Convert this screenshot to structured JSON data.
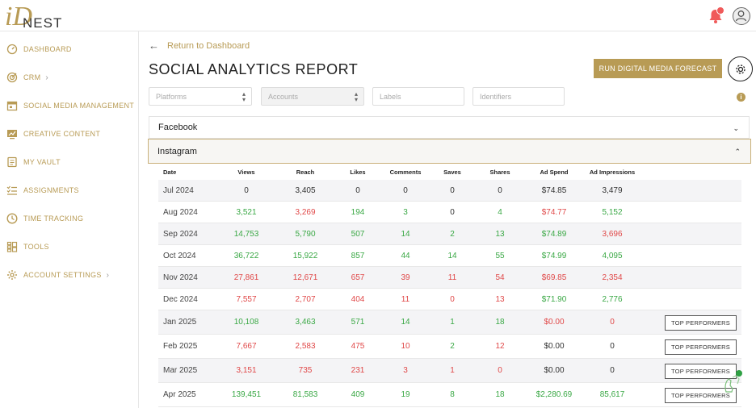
{
  "brand": {
    "logo_mark": "iD",
    "logo_text": "NEST",
    "accent": "#b89b55"
  },
  "header": {
    "notification_icon": "bell-icon",
    "avatar_icon": "user-icon"
  },
  "sidebar": {
    "items": [
      {
        "label": "DASHBOARD",
        "icon": "dashboard-gauge-icon",
        "chevron": false
      },
      {
        "label": "CRM",
        "icon": "target-icon",
        "chevron": true
      },
      {
        "label": "SOCIAL MEDIA MANAGEMENT",
        "icon": "calendar-icon",
        "chevron": false
      },
      {
        "label": "CREATIVE CONTENT",
        "icon": "chart-screen-icon",
        "chevron": false
      },
      {
        "label": "MY VAULT",
        "icon": "document-icon",
        "chevron": false
      },
      {
        "label": "ASSIGNMENTS",
        "icon": "checklist-icon",
        "chevron": false
      },
      {
        "label": "TIME TRACKING",
        "icon": "clock-icon",
        "chevron": false
      },
      {
        "label": "TOOLS",
        "icon": "tools-grid-icon",
        "chevron": false
      },
      {
        "label": "ACCOUNT SETTINGS",
        "icon": "settings-gear-icon",
        "chevron": true
      }
    ]
  },
  "main": {
    "back_label": "Return to Dashboard",
    "title": "SOCIAL ANALYTICS REPORT",
    "forecast_button": "RUN DIGITAL MEDIA FORECAST",
    "filters": {
      "platforms_placeholder": "Platforms",
      "accounts_placeholder": "Accounts",
      "labels_placeholder": "Labels",
      "identifiers_placeholder": "Identifiers"
    },
    "accordions": {
      "facebook": "Facebook",
      "instagram": "Instagram"
    },
    "table": {
      "headers": {
        "date": "Date",
        "views": "Views",
        "reach": "Reach",
        "likes": "Likes",
        "comments": "Comments",
        "saves": "Saves",
        "shares": "Shares",
        "ad_spend": "Ad Spend",
        "ad_impressions": "Ad Impressions"
      },
      "top_performers_label": "TOP PERFORMERS",
      "rows": [
        {
          "date": "Jul 2024",
          "views": "0",
          "reach": "3,405",
          "likes": "0",
          "comments": "0",
          "saves": "0",
          "shares": "0",
          "ad_spend": "$74.85",
          "ad_impressions": "3,479",
          "tone": [
            "neu",
            "neu",
            "neu",
            "neu",
            "neu",
            "neu",
            "neu",
            "neu"
          ],
          "top": false
        },
        {
          "date": "Aug 2024",
          "views": "3,521",
          "reach": "3,269",
          "likes": "194",
          "comments": "3",
          "saves": "0",
          "shares": "4",
          "ad_spend": "$74.77",
          "ad_impressions": "5,152",
          "tone": [
            "pos",
            "neg",
            "pos",
            "pos",
            "neu",
            "pos",
            "neg",
            "pos"
          ],
          "top": false
        },
        {
          "date": "Sep 2024",
          "views": "14,753",
          "reach": "5,790",
          "likes": "507",
          "comments": "14",
          "saves": "2",
          "shares": "13",
          "ad_spend": "$74.89",
          "ad_impressions": "3,696",
          "tone": [
            "pos",
            "pos",
            "pos",
            "pos",
            "pos",
            "pos",
            "pos",
            "neg"
          ],
          "top": false
        },
        {
          "date": "Oct 2024",
          "views": "36,722",
          "reach": "15,922",
          "likes": "857",
          "comments": "44",
          "saves": "14",
          "shares": "55",
          "ad_spend": "$74.99",
          "ad_impressions": "4,095",
          "tone": [
            "pos",
            "pos",
            "pos",
            "pos",
            "pos",
            "pos",
            "pos",
            "pos"
          ],
          "top": false
        },
        {
          "date": "Nov 2024",
          "views": "27,861",
          "reach": "12,671",
          "likes": "657",
          "comments": "39",
          "saves": "11",
          "shares": "54",
          "ad_spend": "$69.85",
          "ad_impressions": "2,354",
          "tone": [
            "neg",
            "neg",
            "neg",
            "neg",
            "neg",
            "neg",
            "neg",
            "neg"
          ],
          "top": false
        },
        {
          "date": "Dec 2024",
          "views": "7,557",
          "reach": "2,707",
          "likes": "404",
          "comments": "11",
          "saves": "0",
          "shares": "13",
          "ad_spend": "$71.90",
          "ad_impressions": "2,776",
          "tone": [
            "neg",
            "neg",
            "neg",
            "neg",
            "neg",
            "neg",
            "pos",
            "pos"
          ],
          "top": false
        },
        {
          "date": "Jan 2025",
          "views": "10,108",
          "reach": "3,463",
          "likes": "571",
          "comments": "14",
          "saves": "1",
          "shares": "18",
          "ad_spend": "$0.00",
          "ad_impressions": "0",
          "tone": [
            "pos",
            "pos",
            "pos",
            "pos",
            "pos",
            "pos",
            "neg",
            "neg"
          ],
          "top": true
        },
        {
          "date": "Feb 2025",
          "views": "7,667",
          "reach": "2,583",
          "likes": "475",
          "comments": "10",
          "saves": "2",
          "shares": "12",
          "ad_spend": "$0.00",
          "ad_impressions": "0",
          "tone": [
            "neg",
            "neg",
            "neg",
            "neg",
            "pos",
            "neg",
            "neu",
            "neu"
          ],
          "top": true
        },
        {
          "date": "Mar 2025",
          "views": "3,151",
          "reach": "735",
          "likes": "231",
          "comments": "3",
          "saves": "1",
          "shares": "0",
          "ad_spend": "$0.00",
          "ad_impressions": "0",
          "tone": [
            "neg",
            "neg",
            "neg",
            "neg",
            "neg",
            "neg",
            "neu",
            "neu"
          ],
          "top": true
        },
        {
          "date": "Apr 2025",
          "views": "139,451",
          "reach": "81,583",
          "likes": "409",
          "comments": "19",
          "saves": "8",
          "shares": "18",
          "ad_spend": "$2,280.69",
          "ad_impressions": "85,617",
          "tone": [
            "pos",
            "pos",
            "pos",
            "pos",
            "pos",
            "pos",
            "pos",
            "pos"
          ],
          "top": true
        }
      ]
    }
  },
  "colors": {
    "positive": "#3aa845",
    "negative": "#e04848",
    "neutral": "#333333",
    "accent": "#b89b55"
  }
}
